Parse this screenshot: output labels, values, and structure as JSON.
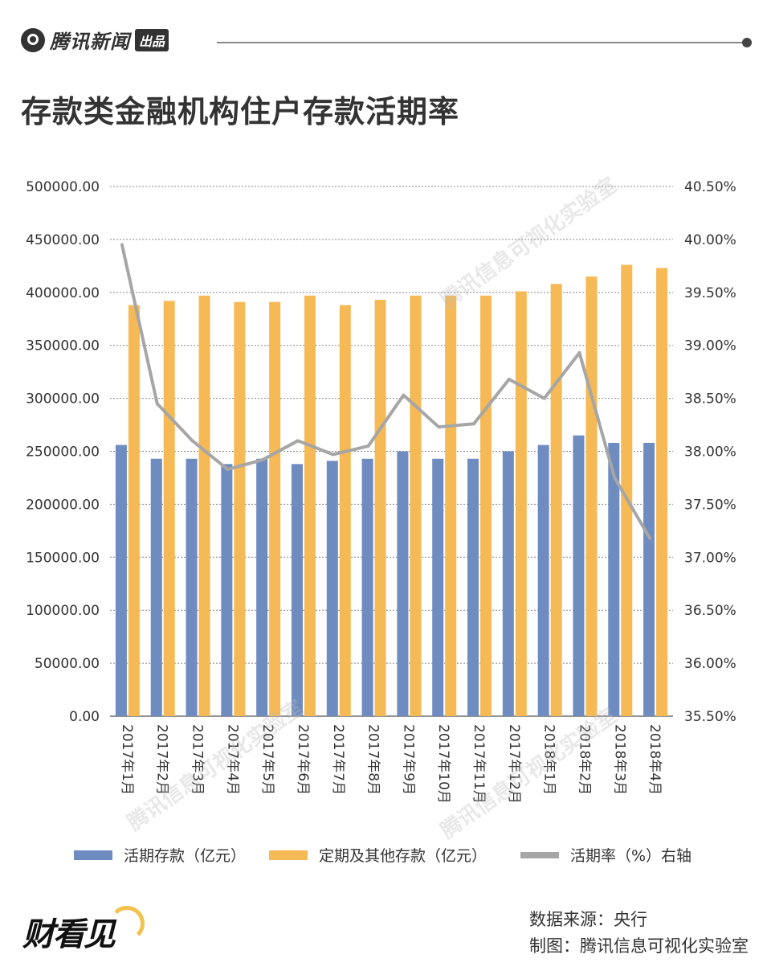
{
  "header": {
    "brand": "腾讯新闻",
    "brand_tag": "出品"
  },
  "title": "存款类金融机构住户存款活期率",
  "chart_data": {
    "type": "bar",
    "title": "存款类金融机构住户存款活期率",
    "categories": [
      "2017年1月",
      "2017年2月",
      "2017年3月",
      "2017年4月",
      "2017年5月",
      "2017年6月",
      "2017年7月",
      "2017年8月",
      "2017年9月",
      "2017年10月",
      "2017年11月",
      "2017年12月",
      "2018年1月",
      "2018年2月",
      "2018年3月",
      "2018年4月"
    ],
    "series": [
      {
        "name": "活期存款（亿元）",
        "type": "bar",
        "axis": "left",
        "color": "#6e8cc0",
        "values": [
          256000,
          243000,
          243000,
          238000,
          243000,
          238000,
          241000,
          243000,
          250000,
          243000,
          243000,
          250000,
          256000,
          265000,
          258000,
          258000
        ]
      },
      {
        "name": "定期及其他存款（亿元）",
        "type": "bar",
        "axis": "left",
        "color": "#f5b955",
        "values": [
          388000,
          392000,
          397000,
          391000,
          391000,
          397000,
          388000,
          393000,
          397000,
          397000,
          397000,
          401000,
          408000,
          415000,
          426000,
          423000
        ]
      },
      {
        "name": "活期率（%）右轴",
        "type": "line",
        "axis": "right",
        "color": "#a6a6a6",
        "values": [
          39.95,
          38.45,
          38.1,
          37.83,
          37.92,
          38.1,
          37.97,
          38.05,
          38.53,
          38.23,
          38.26,
          38.68,
          38.5,
          38.93,
          37.75,
          37.18
        ]
      }
    ],
    "y_left": {
      "min": 0,
      "max": 500000,
      "step": 50000,
      "ticks": [
        "0.00",
        "50000.00",
        "100000.00",
        "150000.00",
        "200000.00",
        "250000.00",
        "300000.00",
        "350000.00",
        "400000.00",
        "450000.00",
        "500000.00"
      ]
    },
    "y_right": {
      "min": 35.5,
      "max": 40.5,
      "step": 0.5,
      "ticks": [
        "35.50%",
        "36.00%",
        "36.50%",
        "37.00%",
        "37.50%",
        "38.00%",
        "38.50%",
        "39.00%",
        "39.50%",
        "40.00%",
        "40.50%"
      ]
    },
    "grid": true,
    "legend_position": "bottom"
  },
  "watermark": "腾讯信息可视化实验室",
  "footer": {
    "brand": "财看见",
    "source": "数据来源：央行",
    "credit": "制图：腾讯信息可视化实验室"
  }
}
